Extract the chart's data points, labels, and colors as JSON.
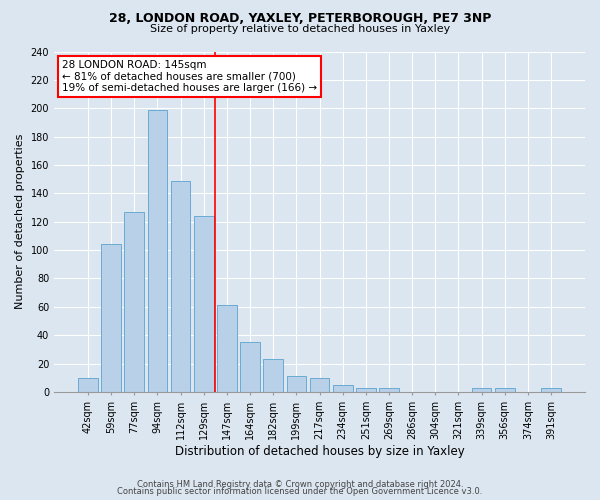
{
  "title1": "28, LONDON ROAD, YAXLEY, PETERBOROUGH, PE7 3NP",
  "title2": "Size of property relative to detached houses in Yaxley",
  "xlabel": "Distribution of detached houses by size in Yaxley",
  "ylabel": "Number of detached properties",
  "bar_labels": [
    "42sqm",
    "59sqm",
    "77sqm",
    "94sqm",
    "112sqm",
    "129sqm",
    "147sqm",
    "164sqm",
    "182sqm",
    "199sqm",
    "217sqm",
    "234sqm",
    "251sqm",
    "269sqm",
    "286sqm",
    "304sqm",
    "321sqm",
    "339sqm",
    "356sqm",
    "374sqm",
    "391sqm"
  ],
  "bar_values": [
    10,
    104,
    127,
    199,
    149,
    124,
    61,
    35,
    23,
    11,
    10,
    5,
    3,
    3,
    0,
    0,
    0,
    3,
    3,
    0,
    3
  ],
  "bar_color": "#b8d0e8",
  "bar_edge_color": "#6aaad4",
  "vline_position": 5.5,
  "vline_color": "red",
  "annotation_title": "28 LONDON ROAD: 145sqm",
  "annotation_line1": "← 81% of detached houses are smaller (700)",
  "annotation_line2": "19% of semi-detached houses are larger (166) →",
  "annotation_box_color": "white",
  "annotation_box_edge": "red",
  "ylim": [
    0,
    240
  ],
  "yticks": [
    0,
    20,
    40,
    60,
    80,
    100,
    120,
    140,
    160,
    180,
    200,
    220,
    240
  ],
  "footer1": "Contains HM Land Registry data © Crown copyright and database right 2024.",
  "footer2": "Contains public sector information licensed under the Open Government Licence v3.0.",
  "bg_color": "#dce6f0",
  "plot_bg_color": "#dce6f0",
  "title1_fontsize": 9,
  "title2_fontsize": 8,
  "xlabel_fontsize": 8.5,
  "ylabel_fontsize": 8,
  "tick_fontsize": 7,
  "footer_fontsize": 6
}
